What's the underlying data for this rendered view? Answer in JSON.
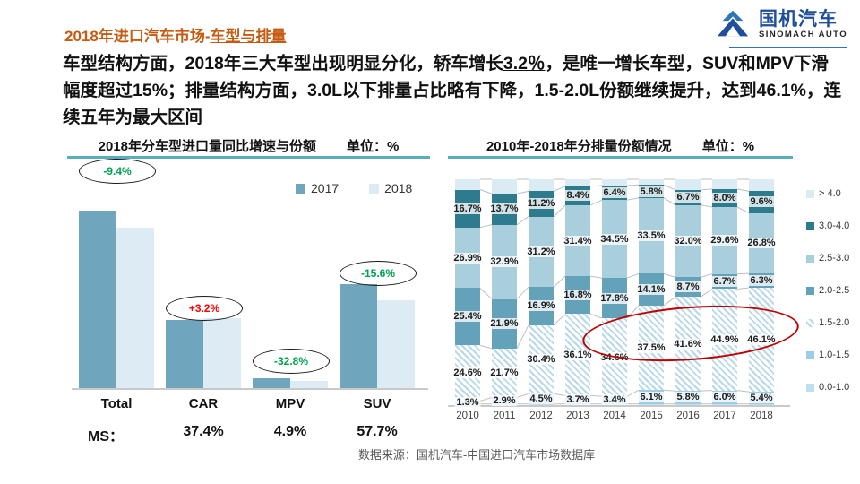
{
  "header": {
    "title_prefix": "2018年进口汽车市场-",
    "title_emph": "车型与排量",
    "logo_cn": "国机汽车",
    "logo_en": "SINOMACH AUTO"
  },
  "summary": {
    "part1": "车型结构方面，2018年三大车型出现明显分化，轿车增长",
    "part2_underlined": "3.2％",
    "part3": "，是唯一增长车型，SUV和MPV下滑幅度超过15%；排量结构方面，3.0L以下排量占比略有下降，1.5-2.0L份额继续提升，达到46.1%，连续五年为最大区间"
  },
  "footer": {
    "source": "数据来源：国机汽车-中国进口汽车市场数据库"
  },
  "theme": {
    "title_orange": "#C55A11",
    "rule_teal": "#57AEBE",
    "logo_blue": "#1F4E9C",
    "annotation_green": "#00A050",
    "annotation_red": "#FF0000",
    "highlight_ellipse_red": "#C00000"
  },
  "chart_data": [
    {
      "type": "bar",
      "title": "2018年分车型进口量同比增速与份额",
      "unit_label": "单位：%",
      "categories": [
        "Total",
        "CAR",
        "MPV",
        "SUV"
      ],
      "series": [
        {
          "name": "2017",
          "color": "#6FA6BE",
          "values": [
            100,
            38.4,
            5.6,
            58.6
          ]
        },
        {
          "name": "2018",
          "color": "#DDECF4",
          "values": [
            90.6,
            39.6,
            3.8,
            49.5
          ]
        }
      ],
      "ylim": [
        0,
        105
      ],
      "grid": false,
      "legend_position": "top-right",
      "growth_annotations": [
        {
          "text": "-9.4%",
          "color": "#00A050"
        },
        {
          "text": "+3.2%",
          "color": "#FF0000"
        },
        {
          "text": "-32.8%",
          "color": "#00A050"
        },
        {
          "text": "-15.6%",
          "color": "#00A050"
        }
      ],
      "market_share": {
        "label": "MS：",
        "values": [
          null,
          "37.4%",
          "4.9%",
          "57.7%"
        ]
      }
    },
    {
      "type": "bar",
      "stacked": true,
      "title": "2010年-2018年分排量份额情况",
      "unit_label": "单位：%",
      "categories": [
        "2010",
        "2011",
        "2012",
        "2013",
        "2014",
        "2015",
        "2016",
        "2017",
        "2018"
      ],
      "ylim": [
        0,
        100
      ],
      "grid": false,
      "legend_position": "right",
      "series": [
        {
          "name": "0.0-1.0",
          "color": "#BFDFEF",
          "show_labels": false,
          "values": [
            0.5,
            0.5,
            0.5,
            0.5,
            0.5,
            0.5,
            0.5,
            0.5,
            0.5
          ]
        },
        {
          "name": "1.0-1.5",
          "color": "#A0CDE6",
          "show_labels": true,
          "values": [
            1.3,
            2.9,
            4.5,
            3.7,
            3.4,
            6.1,
            5.8,
            6.0,
            5.4
          ]
        },
        {
          "name": "1.5-2.0",
          "color": "#B7D8E9",
          "hatch": true,
          "show_labels": true,
          "values": [
            24.6,
            21.7,
            30.4,
            36.1,
            34.6,
            37.5,
            41.6,
            44.9,
            46.1
          ]
        },
        {
          "name": "2.0-2.5",
          "color": "#64A2BA",
          "show_labels": true,
          "values": [
            25.4,
            21.9,
            16.9,
            16.8,
            17.8,
            14.1,
            8.7,
            6.7,
            6.3
          ]
        },
        {
          "name": "2.5-3.0",
          "color": "#A9CEDC",
          "show_labels": true,
          "values": [
            26.9,
            32.9,
            31.2,
            31.4,
            34.5,
            33.5,
            32.0,
            29.6,
            26.8
          ]
        },
        {
          "name": "3.0-4.0",
          "color": "#2E7B8E",
          "show_labels": true,
          "values": [
            16.7,
            13.7,
            11.2,
            8.4,
            6.4,
            5.8,
            6.7,
            8.0,
            9.6
          ]
        },
        {
          "name": "> 4.0",
          "color": "#DAEBF4",
          "show_labels": false,
          "values": [
            4.6,
            6.4,
            5.3,
            3.1,
            2.8,
            2.5,
            4.7,
            4.3,
            5.3
          ]
        }
      ],
      "highlight": {
        "note": "1.5-2.0 share circled for 2014-2018",
        "color": "#C00000"
      }
    }
  ]
}
